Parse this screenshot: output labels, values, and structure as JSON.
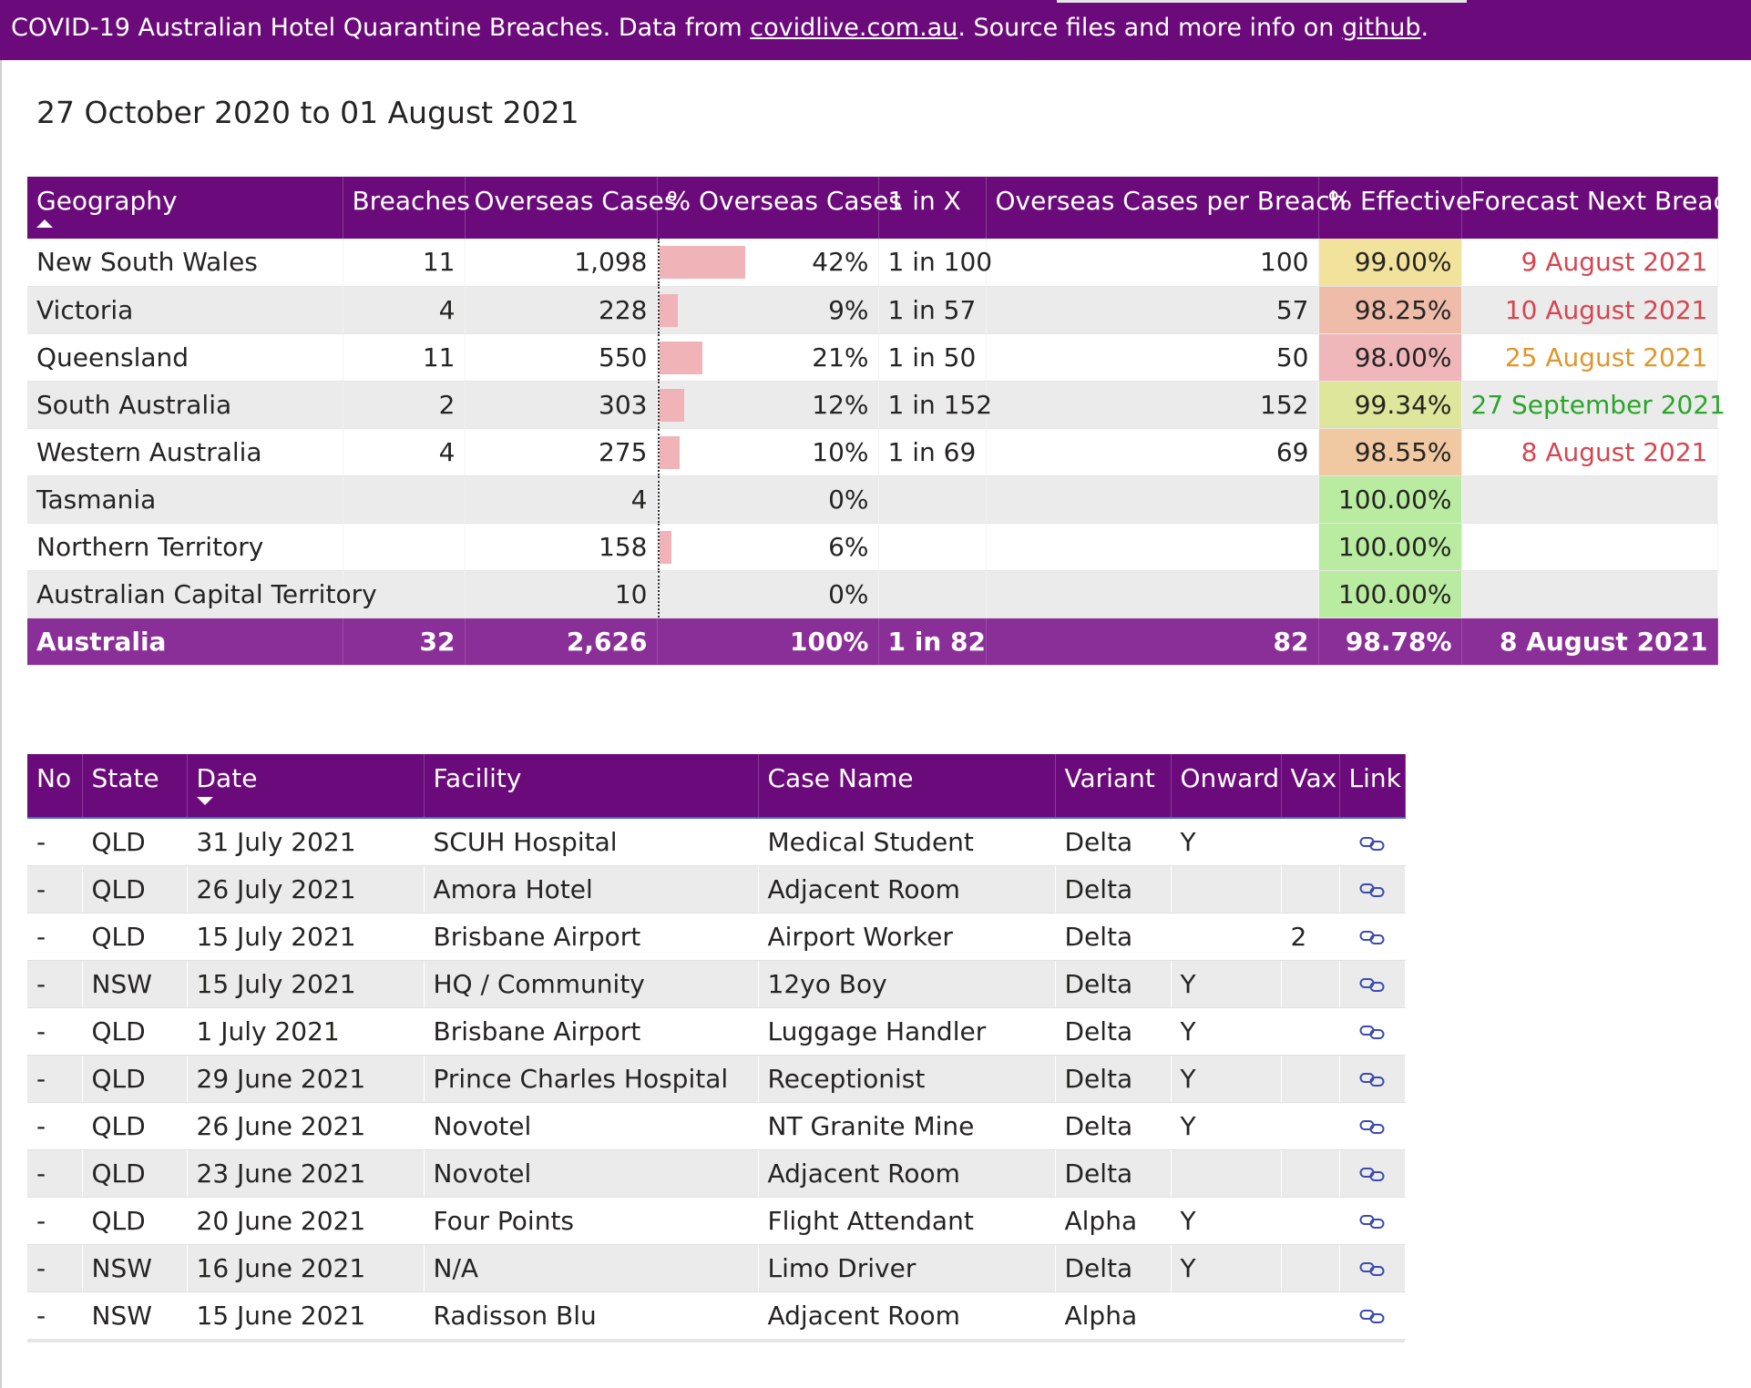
{
  "banner": {
    "prefix": "COVID-19 Australian Hotel Quarantine Breaches. Data from ",
    "link1": "covidlive.com.au",
    "middle": ". Source files and more info on ",
    "link2": "github",
    "suffix": "."
  },
  "date_range": "27 October 2020 to 01 August 2021",
  "summary": {
    "columns": [
      "Geography",
      "Breaches",
      "Overseas Cases",
      "% Overseas Cases",
      "1 in X",
      "Overseas Cases per Breach",
      "% Effective",
      "Forecast Next Breach"
    ],
    "rows": [
      {
        "geo": "New South Wales",
        "breaches": "11",
        "cases": "1,098",
        "pct": "42%",
        "pct_value": 42,
        "one_in": "1 in 100",
        "per_breach": "100",
        "effective": "99.00%",
        "eff_color": "#f1e39c",
        "forecast": "9 August 2021",
        "fc_color": "#d64550"
      },
      {
        "geo": "Victoria",
        "breaches": "4",
        "cases": "228",
        "pct": "9%",
        "pct_value": 9,
        "one_in": "1 in 57",
        "per_breach": "57",
        "effective": "98.25%",
        "eff_color": "#efbcaa",
        "forecast": "10 August 2021",
        "fc_color": "#d64550"
      },
      {
        "geo": "Queensland",
        "breaches": "11",
        "cases": "550",
        "pct": "21%",
        "pct_value": 21,
        "one_in": "1 in 50",
        "per_breach": "50",
        "effective": "98.00%",
        "eff_color": "#f0b7bb",
        "forecast": "25 August 2021",
        "fc_color": "#e0962c"
      },
      {
        "geo": "South Australia",
        "breaches": "2",
        "cases": "303",
        "pct": "12%",
        "pct_value": 12,
        "one_in": "1 in 152",
        "per_breach": "152",
        "effective": "99.34%",
        "eff_color": "#dde69a",
        "forecast": "27 September 2021",
        "fc_color": "#2aa52a"
      },
      {
        "geo": "Western Australia",
        "breaches": "4",
        "cases": "275",
        "pct": "10%",
        "pct_value": 10,
        "one_in": "1 in 69",
        "per_breach": "69",
        "effective": "98.55%",
        "eff_color": "#f0c9a2",
        "forecast": "8 August 2021",
        "fc_color": "#d64550"
      },
      {
        "geo": "Tasmania",
        "breaches": "",
        "cases": "4",
        "pct": "0%",
        "pct_value": 0,
        "one_in": "",
        "per_breach": "",
        "effective": "100.00%",
        "eff_color": "#b9eca0",
        "forecast": "",
        "fc_color": "#252423"
      },
      {
        "geo": "Northern Territory",
        "breaches": "",
        "cases": "158",
        "pct": "6%",
        "pct_value": 6,
        "one_in": "",
        "per_breach": "",
        "effective": "100.00%",
        "eff_color": "#b9eca0",
        "forecast": "",
        "fc_color": "#252423"
      },
      {
        "geo": "Australian Capital Territory",
        "breaches": "",
        "cases": "10",
        "pct": "0%",
        "pct_value": 0,
        "one_in": "",
        "per_breach": "",
        "effective": "100.00%",
        "eff_color": "#b9eca0",
        "forecast": "",
        "fc_color": "#252423"
      }
    ],
    "total": {
      "geo": "Australia",
      "breaches": "32",
      "cases": "2,626",
      "pct": "100%",
      "one_in": "1 in 82",
      "per_breach": "82",
      "effective": "98.78%",
      "forecast": "8 August 2021"
    }
  },
  "breach_list": {
    "columns": [
      "No",
      "State",
      "Date",
      "Facility",
      "Case Name",
      "Variant",
      "Onward",
      "Vax",
      "Link"
    ],
    "rows": [
      {
        "no": "-",
        "state": "QLD",
        "date": "31 July 2021",
        "facility": "SCUH Hospital",
        "case": "Medical Student",
        "variant": "Delta",
        "onward": "Y",
        "vax": ""
      },
      {
        "no": "-",
        "state": "QLD",
        "date": "26 July 2021",
        "facility": "Amora Hotel",
        "case": "Adjacent Room",
        "variant": "Delta",
        "onward": "",
        "vax": ""
      },
      {
        "no": "-",
        "state": "QLD",
        "date": "15 July 2021",
        "facility": "Brisbane Airport",
        "case": "Airport Worker",
        "variant": "Delta",
        "onward": "",
        "vax": "2"
      },
      {
        "no": "-",
        "state": "NSW",
        "date": "15 July 2021",
        "facility": "HQ / Community",
        "case": "12yo Boy",
        "variant": "Delta",
        "onward": "Y",
        "vax": ""
      },
      {
        "no": "-",
        "state": "QLD",
        "date": "1 July 2021",
        "facility": "Brisbane Airport",
        "case": "Luggage Handler",
        "variant": "Delta",
        "onward": "Y",
        "vax": ""
      },
      {
        "no": "-",
        "state": "QLD",
        "date": "29 June 2021",
        "facility": "Prince Charles Hospital",
        "case": "Receptionist",
        "variant": "Delta",
        "onward": "Y",
        "vax": ""
      },
      {
        "no": "-",
        "state": "QLD",
        "date": "26 June 2021",
        "facility": "Novotel",
        "case": "NT Granite Mine",
        "variant": "Delta",
        "onward": "Y",
        "vax": ""
      },
      {
        "no": "-",
        "state": "QLD",
        "date": "23 June 2021",
        "facility": "Novotel",
        "case": "Adjacent Room",
        "variant": "Delta",
        "onward": "",
        "vax": ""
      },
      {
        "no": "-",
        "state": "QLD",
        "date": "20 June 2021",
        "facility": "Four Points",
        "case": "Flight Attendant",
        "variant": "Alpha",
        "onward": "Y",
        "vax": ""
      },
      {
        "no": "-",
        "state": "NSW",
        "date": "16 June 2021",
        "facility": "N/A",
        "case": "Limo Driver",
        "variant": "Delta",
        "onward": "Y",
        "vax": ""
      },
      {
        "no": "-",
        "state": "NSW",
        "date": "15 June 2021",
        "facility": "Radisson Blu",
        "case": "Adjacent Room",
        "variant": "Alpha",
        "onward": "",
        "vax": ""
      }
    ]
  },
  "colors": {
    "brand": "#6b0a7a",
    "total_row": "#8b2f98",
    "bar": "#f0b4b8",
    "link_icon": "#3a4bb0"
  },
  "icons": {
    "link": "link-icon",
    "sort_asc": "sort-ascending-icon",
    "sort_desc": "sort-descending-icon"
  }
}
